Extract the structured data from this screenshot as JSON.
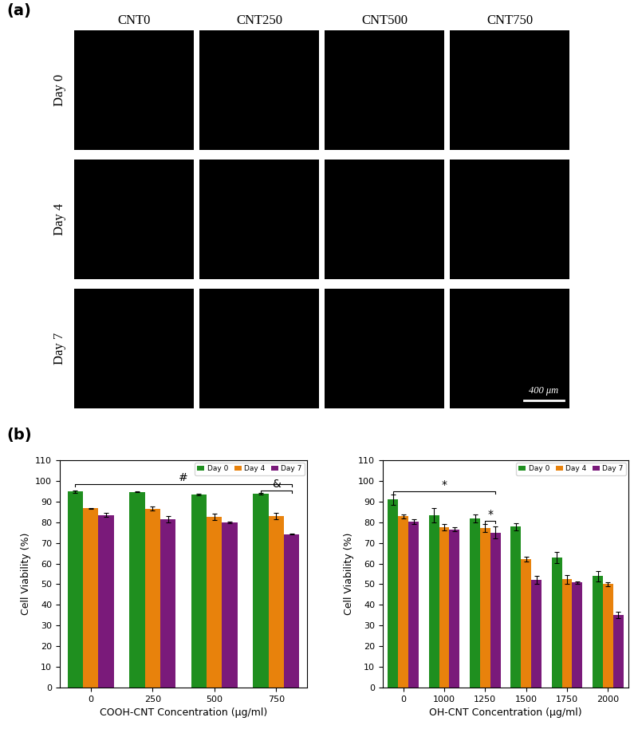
{
  "panel_labels": [
    "(a)",
    "(b)"
  ],
  "images": {
    "columns": [
      "CNT0",
      "CNT250",
      "CNT500",
      "CNT750"
    ],
    "rows": [
      "Day 0",
      "Day 4",
      "Day 7"
    ],
    "scale_bar": "400 μm"
  },
  "chart_data": [
    {
      "type": "bar",
      "xlabel": "COOH-CNT Concentration (μg/ml)",
      "ylabel": "Cell Viability (%)",
      "categories": [
        "0",
        "250",
        "500",
        "750"
      ],
      "series": [
        {
          "name": "Day 0",
          "color": "#1f8f1f",
          "values": [
            94.8,
            94.7,
            93.5,
            93.7
          ],
          "errors": [
            0.5,
            0.2,
            0.3,
            0.3
          ]
        },
        {
          "name": "Day 4",
          "color": "#e8820c",
          "values": [
            86.7,
            86.5,
            82.7,
            83.0
          ],
          "errors": [
            0.3,
            1.0,
            1.5,
            1.5
          ]
        },
        {
          "name": "Day 7",
          "color": "#7a1a7a",
          "values": [
            83.5,
            81.5,
            80.0,
            74.2
          ],
          "errors": [
            1.0,
            1.5,
            0.3,
            0.2
          ]
        }
      ],
      "ylim": [
        0,
        110
      ],
      "yticks": [
        0,
        10,
        20,
        30,
        40,
        50,
        60,
        70,
        80,
        90,
        100,
        110
      ],
      "legend": "upper right",
      "grid": false,
      "annotations": [
        {
          "text": "#",
          "from": {
            "category": "0",
            "series": "Day 0"
          },
          "to": {
            "category": "750",
            "series": "Day 7"
          }
        },
        {
          "text": "&",
          "from": {
            "category": "750",
            "series": "Day 0"
          },
          "to": {
            "category": "750",
            "series": "Day 7"
          }
        }
      ]
    },
    {
      "type": "bar",
      "xlabel": "OH-CNT Concentration (μg/ml)",
      "ylabel": "Cell Viability (%)",
      "categories": [
        "0",
        "1000",
        "1250",
        "1500",
        "1750",
        "2000"
      ],
      "series": [
        {
          "name": "Day 0",
          "color": "#1f8f1f",
          "values": [
            91.0,
            83.5,
            81.8,
            77.8,
            63.0,
            54.0
          ],
          "errors": [
            2.5,
            3.5,
            2.0,
            1.8,
            2.8,
            2.5
          ]
        },
        {
          "name": "Day 4",
          "color": "#e8820c",
          "values": [
            82.8,
            77.5,
            77.2,
            62.0,
            52.3,
            50.0
          ],
          "errors": [
            1.0,
            1.5,
            2.0,
            1.2,
            2.0,
            1.0
          ]
        },
        {
          "name": "Day 7",
          "color": "#7a1a7a",
          "values": [
            80.3,
            76.6,
            75.0,
            52.0,
            50.8,
            35.0
          ],
          "errors": [
            1.0,
            1.0,
            3.0,
            2.0,
            0.5,
            1.5
          ]
        }
      ],
      "ylim": [
        0,
        110
      ],
      "yticks": [
        0,
        10,
        20,
        30,
        40,
        50,
        60,
        70,
        80,
        90,
        100,
        110
      ],
      "legend": "upper right",
      "grid": false,
      "annotations": [
        {
          "text": "*",
          "from": {
            "category": "0",
            "series": "Day 0"
          },
          "to": {
            "category": "1250",
            "series": "Day 7"
          }
        },
        {
          "text": "*",
          "from": {
            "category": "1250",
            "series": "Day 4"
          },
          "to": {
            "category": "1250",
            "series": "Day 7"
          }
        }
      ]
    }
  ]
}
